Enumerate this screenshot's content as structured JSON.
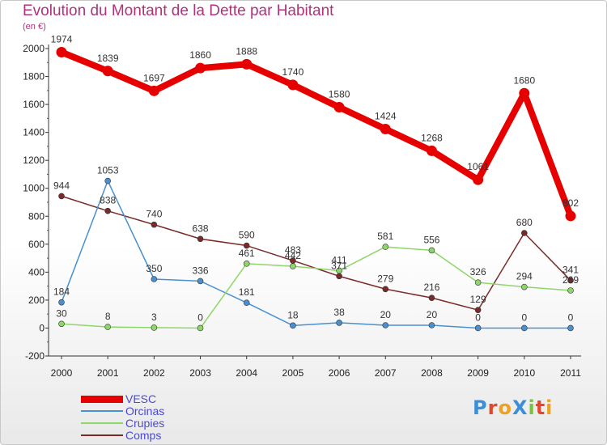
{
  "header": {
    "title": "Evolution du Montant de la Dette par Habitant",
    "subtitle": "(en €)"
  },
  "colors": {
    "title": "#b0327d",
    "legend_text": "#4a4acf"
  },
  "chart_data": {
    "type": "line",
    "x": [
      "2000",
      "2001",
      "2002",
      "2003",
      "2004",
      "2005",
      "2006",
      "2007",
      "2008",
      "2009",
      "2010",
      "2011"
    ],
    "ylim": [
      -200,
      2000
    ],
    "yticks": [
      "-200",
      "0",
      "200",
      "400",
      "600",
      "800",
      "1000",
      "1200",
      "1400",
      "1600",
      "1800",
      "2000"
    ],
    "grid": false,
    "legend": "bottom-left",
    "series": [
      {
        "name": "VESC",
        "color": "#e60000",
        "values": [
          1974,
          1839,
          1697,
          1860,
          1888,
          1740,
          1580,
          1424,
          1268,
          1061,
          1680,
          802
        ],
        "labels": [
          "1974",
          "1839",
          "1697",
          "1860",
          "1888",
          "1740",
          "1580",
          "1424",
          "1268",
          "1061",
          "1680",
          "802"
        ]
      },
      {
        "name": "Orcinas",
        "color": "#4a90d0",
        "values": [
          184,
          1053,
          350,
          336,
          181,
          18,
          38,
          20,
          20,
          0,
          0,
          0
        ],
        "labels": [
          "184",
          "1053",
          "350",
          "336",
          "181",
          "18",
          "38",
          "20",
          "20",
          "0",
          "0",
          "0"
        ]
      },
      {
        "name": "Crupies",
        "color": "#8fd66a",
        "values": [
          30,
          8,
          3,
          0,
          461,
          442,
          411,
          581,
          556,
          326,
          294,
          269
        ],
        "labels": [
          "30",
          "8",
          "3",
          "0",
          "461",
          "442",
          "411",
          "581",
          "556",
          "326",
          "294",
          "269"
        ]
      },
      {
        "name": "Comps",
        "color": "#7a2a2a",
        "values": [
          944,
          838,
          740,
          638,
          590,
          483,
          371,
          279,
          216,
          129,
          680,
          341
        ],
        "labels": [
          "944",
          "838",
          "740",
          "638",
          "590",
          "483",
          "371",
          "279",
          "216",
          "129",
          "680",
          "341"
        ]
      }
    ]
  },
  "logo": {
    "text": "ProXiti",
    "letters": [
      {
        "ch": "P",
        "color": "#3a8fd8"
      },
      {
        "ch": "r",
        "color": "#e2472b"
      },
      {
        "ch": "o",
        "color": "#f0a020"
      },
      {
        "ch": "X",
        "color": "#3a8fd8"
      },
      {
        "ch": "i",
        "color": "#7cc242"
      },
      {
        "ch": "t",
        "color": "#e2472b"
      },
      {
        "ch": "i",
        "color": "#f0a020"
      }
    ]
  }
}
